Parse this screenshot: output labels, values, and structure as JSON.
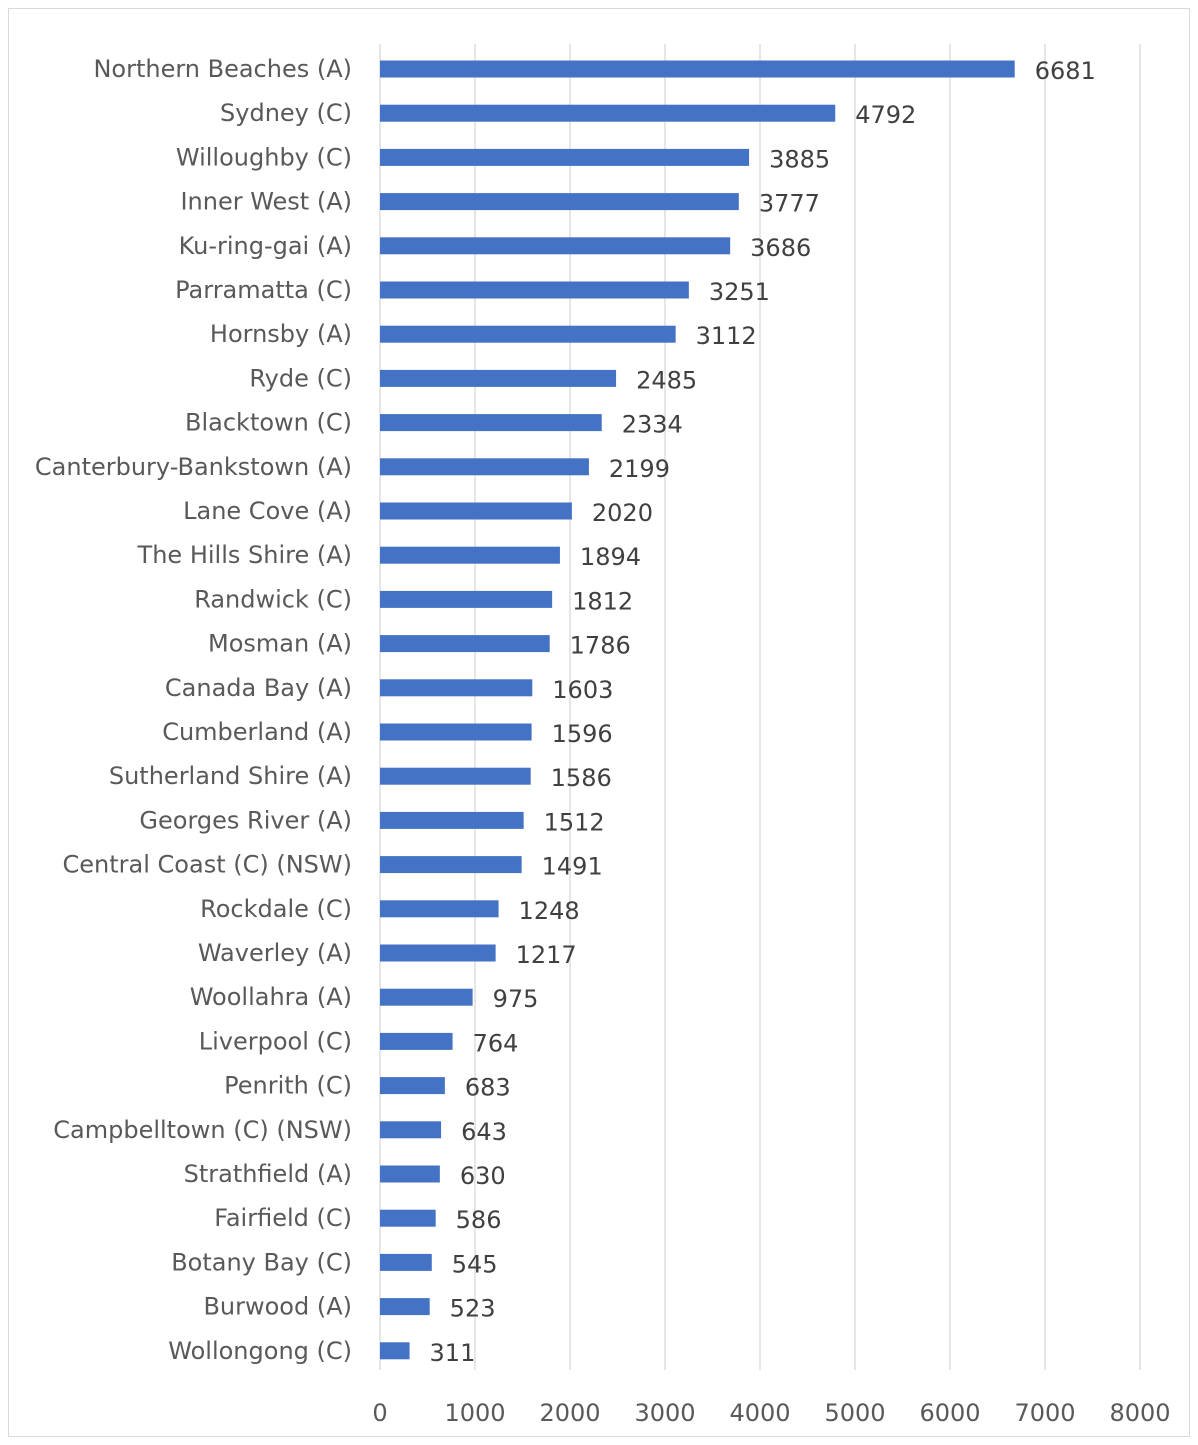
{
  "chart_data": {
    "type": "bar",
    "orientation": "horizontal",
    "categories": [
      "Northern Beaches (A)",
      "Sydney (C)",
      "Willoughby (C)",
      "Inner West (A)",
      "Ku-ring-gai (A)",
      "Parramatta (C)",
      "Hornsby (A)",
      "Ryde (C)",
      "Blacktown (C)",
      "Canterbury-Bankstown (A)",
      "Lane Cove (A)",
      "The Hills Shire (A)",
      "Randwick (C)",
      "Mosman (A)",
      "Canada Bay (A)",
      "Cumberland (A)",
      "Sutherland Shire (A)",
      "Georges River (A)",
      "Central Coast (C) (NSW)",
      "Rockdale (C)",
      "Waverley (A)",
      "Woollahra (A)",
      "Liverpool (C)",
      "Penrith (C)",
      "Campbelltown (C) (NSW)",
      "Strathfield (A)",
      "Fairfield (C)",
      "Botany Bay (C)",
      "Burwood (A)",
      "Wollongong (C)"
    ],
    "values": [
      6681,
      4792,
      3885,
      3777,
      3686,
      3251,
      3112,
      2485,
      2334,
      2199,
      2020,
      1894,
      1812,
      1786,
      1603,
      1596,
      1586,
      1512,
      1491,
      1248,
      1217,
      975,
      764,
      683,
      643,
      630,
      586,
      545,
      523,
      311
    ],
    "xticks": [
      "0",
      "1000",
      "2000",
      "3000",
      "4000",
      "5000",
      "6000",
      "7000",
      "8000"
    ],
    "xlim": [
      0,
      8000
    ],
    "grid": true,
    "bar_color": "#4472c4",
    "title": "",
    "xlabel": "",
    "ylabel": ""
  }
}
